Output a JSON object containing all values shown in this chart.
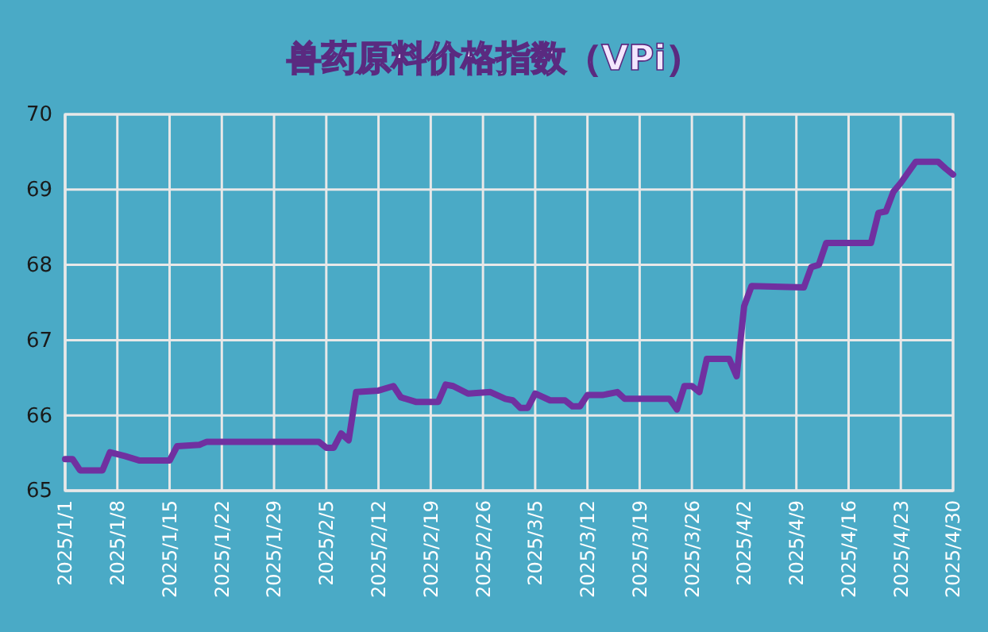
{
  "chart_data": {
    "type": "line",
    "title": "兽药原料价格指数（VPi）",
    "x": [
      "2025-01-01",
      "2025-01-02",
      "2025-01-03",
      "2025-01-06",
      "2025-01-07",
      "2025-01-09",
      "2025-01-11",
      "2025-01-15",
      "2025-01-16",
      "2025-01-19",
      "2025-01-20",
      "2025-02-04",
      "2025-02-05",
      "2025-02-06",
      "2025-02-07",
      "2025-02-08",
      "2025-02-09",
      "2025-02-12",
      "2025-02-14",
      "2025-02-15",
      "2025-02-17",
      "2025-02-20",
      "2025-02-21",
      "2025-02-22",
      "2025-02-24",
      "2025-02-27",
      "2025-03-01",
      "2025-03-02",
      "2025-03-03",
      "2025-03-04",
      "2025-03-05",
      "2025-03-07",
      "2025-03-09",
      "2025-03-10",
      "2025-03-11",
      "2025-03-12",
      "2025-03-14",
      "2025-03-16",
      "2025-03-17",
      "2025-03-23",
      "2025-03-24",
      "2025-03-25",
      "2025-03-26",
      "2025-03-27",
      "2025-03-28",
      "2025-03-31",
      "2025-04-01",
      "2025-04-02",
      "2025-04-03",
      "2025-04-10",
      "2025-04-11",
      "2025-04-12",
      "2025-04-13",
      "2025-04-19",
      "2025-04-20",
      "2025-04-21",
      "2025-04-22",
      "2025-04-23",
      "2025-04-25",
      "2025-04-28",
      "2025-04-29",
      "2025-04-30"
    ],
    "series": [
      {
        "color": "#7030a0",
        "values": [
          65.42,
          65.42,
          65.27,
          65.27,
          65.51,
          65.46,
          65.4,
          65.4,
          65.59,
          65.61,
          65.65,
          65.65,
          65.57,
          65.57,
          65.76,
          65.67,
          66.31,
          66.33,
          66.39,
          66.24,
          66.18,
          66.18,
          66.41,
          66.39,
          66.29,
          66.31,
          66.22,
          66.2,
          66.1,
          66.1,
          66.29,
          66.2,
          66.2,
          66.12,
          66.12,
          66.27,
          66.27,
          66.31,
          66.22,
          66.22,
          66.08,
          66.39,
          66.39,
          66.31,
          66.75,
          66.75,
          66.52,
          67.45,
          67.72,
          67.7,
          67.97,
          68.0,
          68.29,
          68.29,
          68.69,
          68.71,
          68.97,
          69.09,
          69.37,
          69.37,
          69.28,
          69.2
        ]
      }
    ],
    "xlim": [
      "2025-01-01",
      "2025-04-30"
    ],
    "xticks": [
      {
        "value": "2025-01-01",
        "label": "2025/1/1"
      },
      {
        "value": "2025-01-08",
        "label": "2025/1/8"
      },
      {
        "value": "2025-01-15",
        "label": "2025/1/15"
      },
      {
        "value": "2025-01-22",
        "label": "2025/1/22"
      },
      {
        "value": "2025-01-29",
        "label": "2025/1/29"
      },
      {
        "value": "2025-02-05",
        "label": "2025/2/5"
      },
      {
        "value": "2025-02-12",
        "label": "2025/2/12"
      },
      {
        "value": "2025-02-19",
        "label": "2025/2/19"
      },
      {
        "value": "2025-02-26",
        "label": "2025/2/26"
      },
      {
        "value": "2025-03-05",
        "label": "2025/3/5"
      },
      {
        "value": "2025-03-12",
        "label": "2025/3/12"
      },
      {
        "value": "2025-03-19",
        "label": "2025/3/19"
      },
      {
        "value": "2025-03-26",
        "label": "2025/3/26"
      },
      {
        "value": "2025-04-02",
        "label": "2025/4/2"
      },
      {
        "value": "2025-04-09",
        "label": "2025/4/9"
      },
      {
        "value": "2025-04-16",
        "label": "2025/4/16"
      },
      {
        "value": "2025-04-23",
        "label": "2025/4/23"
      },
      {
        "value": "2025-04-30",
        "label": "2025/4/30"
      }
    ],
    "ylim": [
      65,
      70
    ],
    "yticks": [
      65,
      66,
      67,
      68,
      69,
      70
    ],
    "grid": true,
    "line_style": "solid"
  }
}
